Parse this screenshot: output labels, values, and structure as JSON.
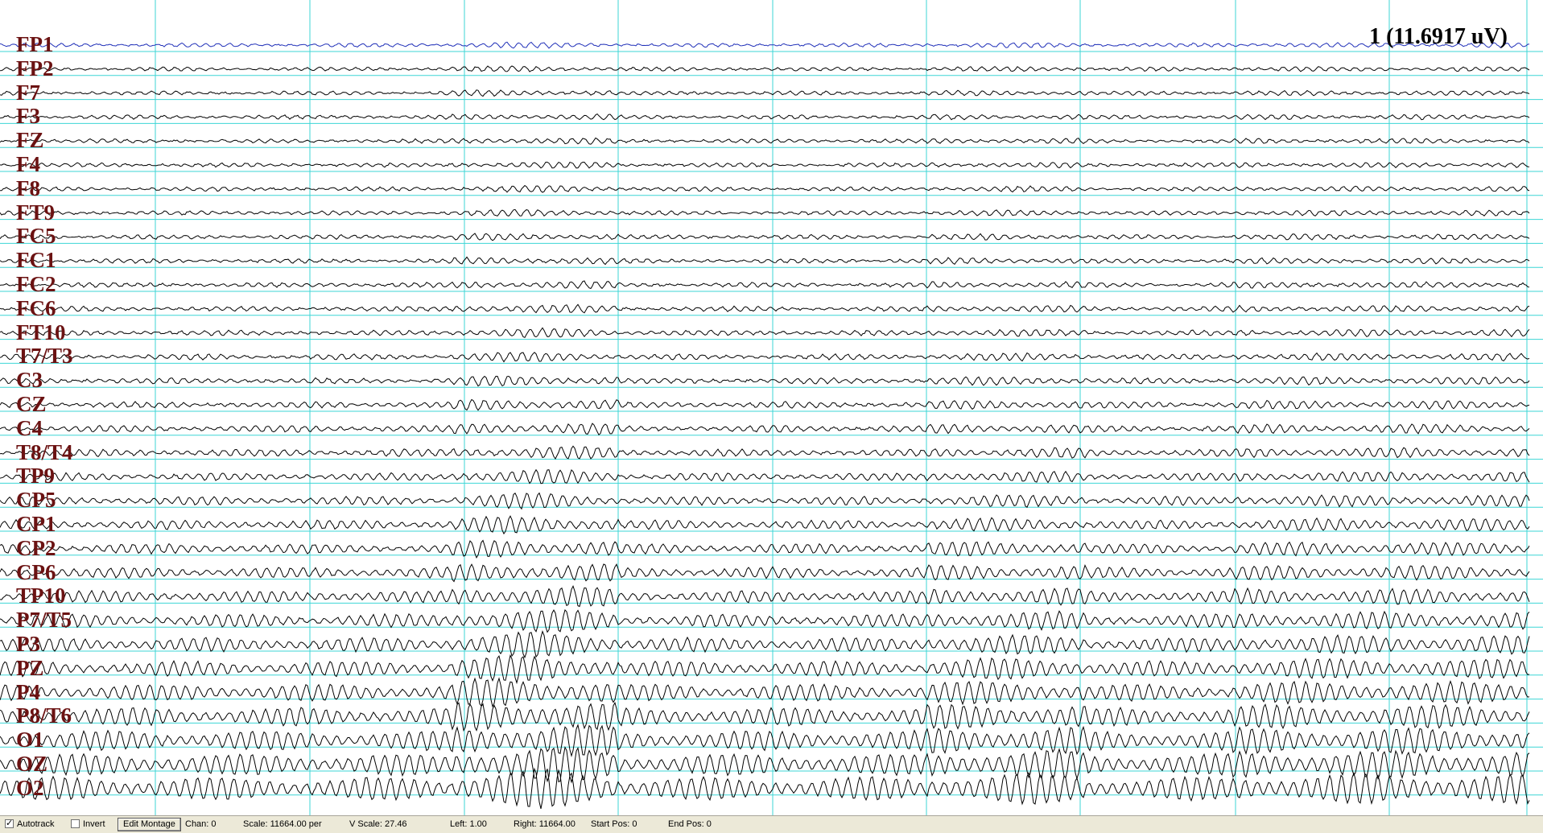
{
  "channels": [
    "FP1",
    "FP2",
    "F7",
    "F3",
    "FZ",
    "F4",
    "F8",
    "FT9",
    "FC5",
    "FC1",
    "FC2",
    "FC6",
    "FT10",
    "T7/T3",
    "C3",
    "CZ",
    "C4",
    "T8/T4",
    "TP9",
    "CP5",
    "CP1",
    "CP2",
    "CP6",
    "TP10",
    "P7/T5",
    "P3",
    "PZ",
    "P4",
    "P8/T6",
    "O1",
    "OZ",
    "O2"
  ],
  "scale_label": "1 (11.6917 uV)",
  "colors": {
    "grid": "#3cd6d6",
    "trace": "#000000",
    "selected_trace": "#1f2fb8",
    "label": "#6b1212"
  },
  "statusbar": {
    "autotrack_label": "Autotrack",
    "autotrack_checked": true,
    "invert_label": "Invert",
    "invert_checked": false,
    "edit_montage_label": "Edit Montage",
    "chan": "Chan: 0",
    "scale": "Scale: 11664.00 per",
    "vscale": "V Scale: 27.46",
    "left": "Left: 1.00",
    "right": "Right: 11664.00",
    "start_pos": "Start Pos: 0",
    "end_pos": "End Pos: 0"
  }
}
